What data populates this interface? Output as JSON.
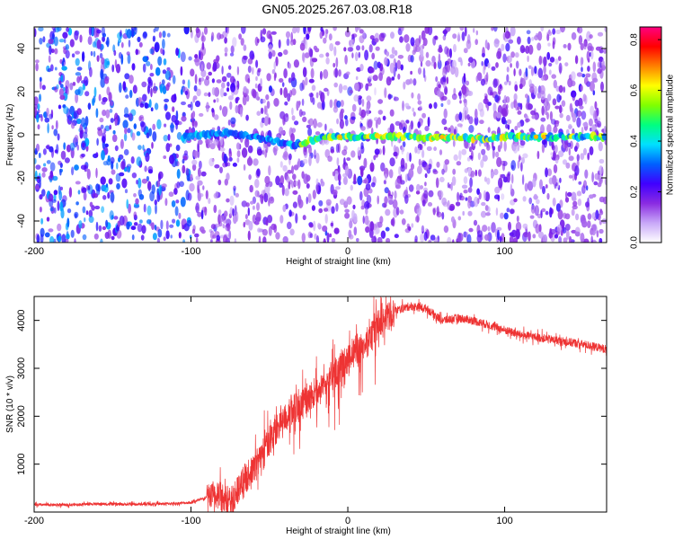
{
  "title": "GN05.2025.267.03.08.R18",
  "chart_data": [
    {
      "type": "heatmap",
      "xlabel": "Height of straight line (km)",
      "ylabel": "Frequency (Hz)",
      "xlim": [
        -200,
        165
      ],
      "ylim": [
        -50,
        50
      ],
      "xticks": [
        -200,
        -100,
        0,
        100
      ],
      "yticks": [
        -40,
        -20,
        0,
        20,
        40
      ],
      "colorbar": {
        "label": "Normalized spectral amplitude",
        "range": [
          0,
          0.85
        ],
        "ticks": [
          "0.0",
          "0.2",
          "0.4",
          "0.6",
          "0.8"
        ],
        "colormap": [
          "#ffffff",
          "#c8a8f8",
          "#8a2be2",
          "#4000ff",
          "#0060ff",
          "#00e0ff",
          "#00ff80",
          "#80ff00",
          "#ffff00",
          "#ff8000",
          "#ff0000",
          "#ff0080"
        ]
      },
      "carrier_track": [
        {
          "x": -105,
          "y": -1
        },
        {
          "x": -90,
          "y": 0
        },
        {
          "x": -75,
          "y": 1
        },
        {
          "x": -60,
          "y": -1
        },
        {
          "x": -45,
          "y": -3
        },
        {
          "x": -35,
          "y": -5
        },
        {
          "x": -25,
          "y": -3
        },
        {
          "x": -15,
          "y": -1
        },
        {
          "x": -5,
          "y": -1
        },
        {
          "x": 20,
          "y": -1
        },
        {
          "x": 60,
          "y": -1
        },
        {
          "x": 90,
          "y": -2
        },
        {
          "x": 100,
          "y": -1
        },
        {
          "x": 130,
          "y": -1
        },
        {
          "x": 165,
          "y": -1
        }
      ]
    },
    {
      "type": "line",
      "xlabel": "Height of straight line (km)",
      "ylabel": "SNR (10 * v/v)",
      "xlim": [
        -200,
        165
      ],
      "ylim": [
        0,
        4500
      ],
      "xticks": [
        -200,
        -100,
        0,
        100
      ],
      "yticks": [
        1000,
        2000,
        3000,
        4000
      ],
      "color": "#ee3333",
      "series": [
        {
          "points": [
            [
              -200,
              150
            ],
            [
              -180,
              150
            ],
            [
              -160,
              170
            ],
            [
              -140,
              160
            ],
            [
              -120,
              170
            ],
            [
              -110,
              180
            ],
            [
              -100,
              200
            ],
            [
              -90,
              300
            ],
            [
              -80,
              380
            ],
            [
              -75,
              150
            ],
            [
              -70,
              500
            ],
            [
              -60,
              900
            ],
            [
              -50,
              1500
            ],
            [
              -40,
              2000
            ],
            [
              -30,
              2300
            ],
            [
              -20,
              2500
            ],
            [
              -10,
              2800
            ],
            [
              0,
              3200
            ],
            [
              5,
              3400
            ],
            [
              10,
              3500
            ],
            [
              15,
              3700
            ],
            [
              20,
              3950
            ],
            [
              30,
              4200
            ],
            [
              40,
              4300
            ],
            [
              50,
              4250
            ],
            [
              60,
              4000
            ],
            [
              70,
              4050
            ],
            [
              80,
              4000
            ],
            [
              90,
              3900
            ],
            [
              100,
              3800
            ],
            [
              110,
              3700
            ],
            [
              120,
              3650
            ],
            [
              130,
              3600
            ],
            [
              140,
              3550
            ],
            [
              150,
              3500
            ],
            [
              165,
              3400
            ]
          ]
        }
      ]
    }
  ]
}
